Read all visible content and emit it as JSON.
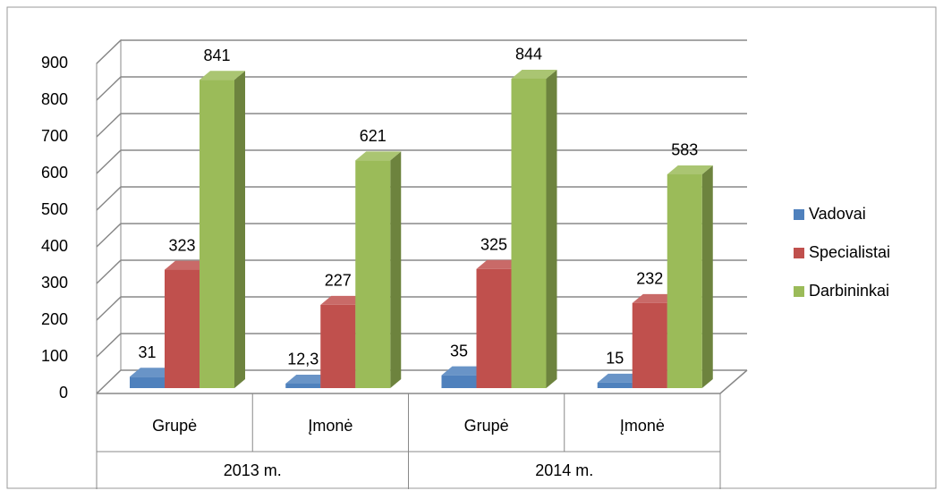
{
  "chart_data": {
    "type": "bar3d",
    "groups": [
      "2013 m.",
      "2014 m."
    ],
    "categories": [
      "Grupė",
      "Įmonė",
      "Grupė",
      "Įmonė"
    ],
    "series": [
      {
        "name": "Vadovai",
        "color": "#4f81bd",
        "values": [
          31,
          12.3,
          35,
          15
        ],
        "value_labels": [
          "31",
          "12,3",
          "35",
          "15"
        ]
      },
      {
        "name": "Specialistai",
        "color": "#c0504d",
        "values": [
          323,
          227,
          325,
          232
        ]
      },
      {
        "name": "Darbininkai",
        "color": "#9bbb59",
        "values": [
          841,
          621,
          844,
          583
        ]
      }
    ],
    "ylim": [
      0,
      900
    ],
    "yticks": [
      0,
      100,
      200,
      300,
      400,
      500,
      600,
      700,
      800,
      900
    ],
    "grid": true,
    "legend": "right"
  }
}
